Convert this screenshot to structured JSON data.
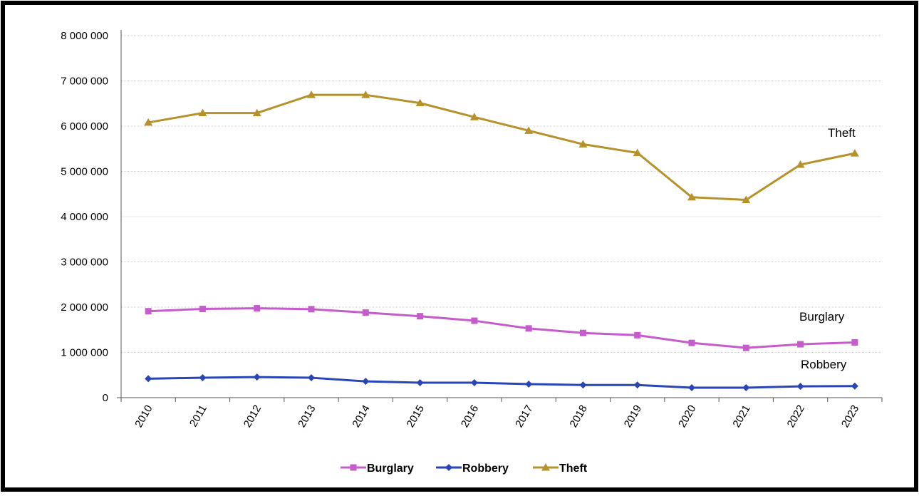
{
  "chart_data": {
    "type": "line",
    "title": "",
    "xlabel": "",
    "ylabel": "",
    "categories": [
      "2010",
      "2011",
      "2012",
      "2013",
      "2014",
      "2015",
      "2016",
      "2017",
      "2018",
      "2019",
      "2020",
      "2021",
      "2022",
      "2023"
    ],
    "y_ticks": [
      "0",
      "1 000 000",
      "2 000 000",
      "3 000 000",
      "4 000 000",
      "5 000 000",
      "6 000 000",
      "7 000 000",
      "8 000 000"
    ],
    "ylim": [
      0,
      8000000
    ],
    "grid": true,
    "legend_position": "bottom",
    "series": [
      {
        "name": "Burglary",
        "label": "Burglary",
        "color": "#c45ccb",
        "marker": "square",
        "values": [
          1910000,
          1960000,
          1975000,
          1955000,
          1880000,
          1800000,
          1700000,
          1530000,
          1430000,
          1380000,
          1210000,
          1100000,
          1180000,
          1220000
        ]
      },
      {
        "name": "Robbery",
        "label": "Robbery",
        "color": "#2a45b5",
        "marker": "diamond",
        "values": [
          420000,
          440000,
          455000,
          440000,
          360000,
          330000,
          330000,
          300000,
          280000,
          280000,
          220000,
          220000,
          250000,
          255000
        ]
      },
      {
        "name": "Theft",
        "label": "Theft",
        "color": "#b5922b",
        "marker": "triangle",
        "values": [
          6080000,
          6290000,
          6290000,
          6690000,
          6690000,
          6510000,
          6200000,
          5900000,
          5600000,
          5410000,
          4430000,
          4370000,
          5150000,
          5400000
        ]
      }
    ]
  }
}
